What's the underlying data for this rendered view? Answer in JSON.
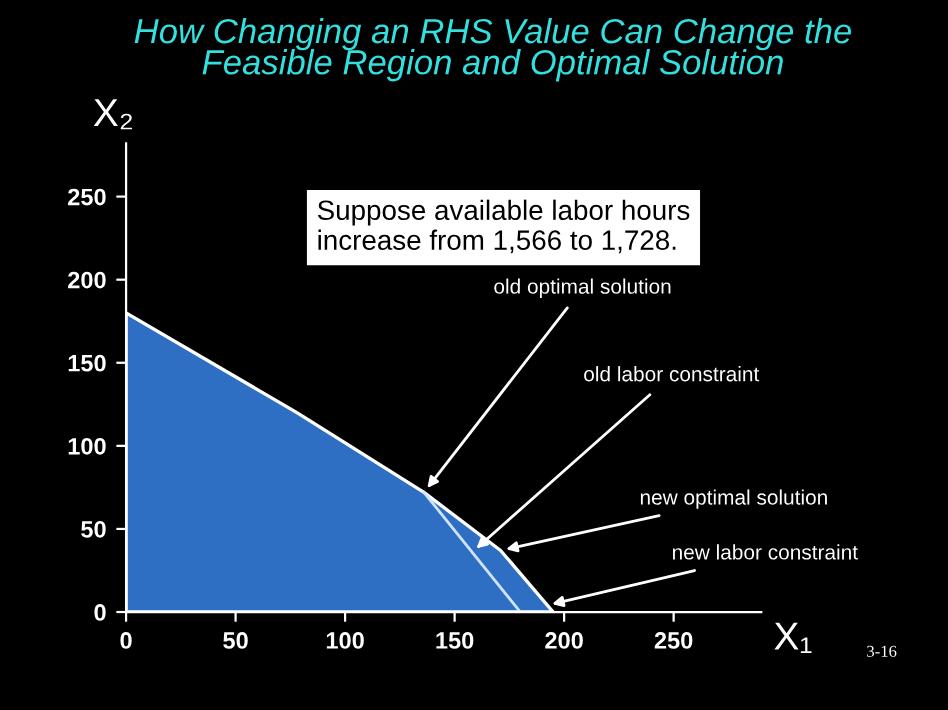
{
  "chart_data": {
    "type": "area",
    "title": "How Changing an RHS Value Can Change the\nFeasible Region and Optimal Solution",
    "xlabel": "X₁",
    "ylabel": "X₂",
    "series": [
      {
        "color": "#2e6fc4",
        "x": [
          0,
          78,
          136,
          171,
          195
        ],
        "values": [
          180,
          120,
          72,
          37,
          0
        ]
      },
      {
        "type": "line",
        "color": "#d0e4ff",
        "x": [
          136,
          180
        ],
        "values": [
          72,
          0
        ]
      }
    ],
    "xlim": [
      0,
      290
    ],
    "ylim": [
      0,
      282
    ],
    "xticks": [
      0,
      50,
      100,
      150,
      200,
      250
    ],
    "yticks": [
      0,
      50,
      100,
      150,
      200,
      250
    ],
    "grid": false,
    "legend": false,
    "annotations": [
      "Suppose available labor hours\nincrease from 1,566 to 1,728.",
      {
        "text": "old optimal solution",
        "x": 136,
        "y": 72
      },
      {
        "text": "old labor constraint",
        "x": 158,
        "y": 36
      },
      {
        "text": "new optimal solution",
        "x": 171,
        "y": 37
      },
      {
        "text": "new labor constraint",
        "x": 192,
        "y": 4
      },
      "3-16"
    ]
  }
}
